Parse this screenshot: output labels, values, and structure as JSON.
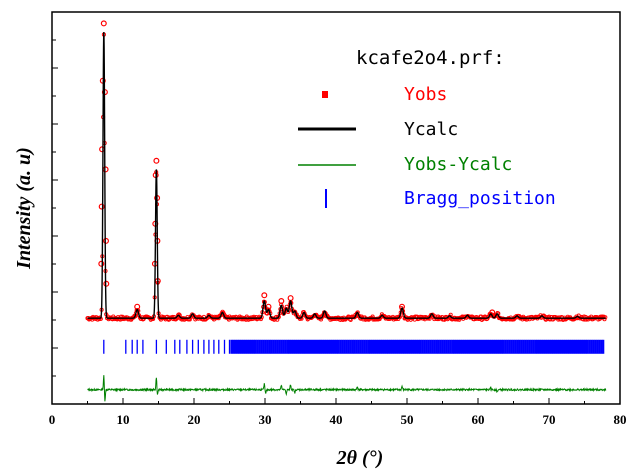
{
  "chart_data": {
    "type": "line",
    "file_label": "kcafe2o4.prf:",
    "xlabel": "2θ (°)",
    "ylabel": "Intensity (a. u)",
    "xlim": [
      0,
      80
    ],
    "xticks": [
      0,
      10,
      20,
      30,
      40,
      50,
      60,
      70,
      80
    ],
    "xrange_data": [
      5,
      78
    ],
    "ylim": [
      -0.27,
      1.1
    ],
    "baseline": 0.03,
    "colors": {
      "yobs": "#ff0000",
      "ycalc": "#000000",
      "diff": "#008000",
      "bragg": "#0000ff"
    },
    "series": [
      {
        "name": "Yobs",
        "style": "circles"
      },
      {
        "name": "Ycalc",
        "style": "line"
      },
      {
        "name": "Yobs-Ycalc",
        "style": "line"
      },
      {
        "name": "Bragg_position",
        "style": "ticks"
      }
    ],
    "peaks": [
      {
        "x": 7.3,
        "h": 1.0
      },
      {
        "x": 14.7,
        "h": 0.52
      },
      {
        "x": 12.0,
        "h": 0.03
      },
      {
        "x": 17.8,
        "h": 0.01
      },
      {
        "x": 19.8,
        "h": 0.015
      },
      {
        "x": 22.1,
        "h": 0.01
      },
      {
        "x": 24.0,
        "h": 0.02
      },
      {
        "x": 29.9,
        "h": 0.06
      },
      {
        "x": 30.5,
        "h": 0.03
      },
      {
        "x": 32.3,
        "h": 0.045
      },
      {
        "x": 33.0,
        "h": 0.035
      },
      {
        "x": 33.6,
        "h": 0.06
      },
      {
        "x": 34.2,
        "h": 0.025
      },
      {
        "x": 35.5,
        "h": 0.02
      },
      {
        "x": 37.0,
        "h": 0.015
      },
      {
        "x": 38.4,
        "h": 0.025
      },
      {
        "x": 43.0,
        "h": 0.02
      },
      {
        "x": 46.5,
        "h": 0.01
      },
      {
        "x": 49.3,
        "h": 0.035
      },
      {
        "x": 53.5,
        "h": 0.015
      },
      {
        "x": 56.0,
        "h": 0.008
      },
      {
        "x": 58.5,
        "h": 0.01
      },
      {
        "x": 61.8,
        "h": 0.015
      },
      {
        "x": 62.7,
        "h": 0.015
      },
      {
        "x": 65.5,
        "h": 0.008
      },
      {
        "x": 69.0,
        "h": 0.008
      },
      {
        "x": 74.0,
        "h": 0.006
      }
    ],
    "obs_overshoot": [
      {
        "x": 7.3,
        "y": 1.06
      },
      {
        "x": 7.15,
        "y": 0.86
      },
      {
        "x": 7.45,
        "y": 0.82
      },
      {
        "x": 7.05,
        "y": 0.62
      },
      {
        "x": 7.55,
        "y": 0.55
      },
      {
        "x": 7.0,
        "y": 0.42
      },
      {
        "x": 7.6,
        "y": 0.3
      },
      {
        "x": 6.95,
        "y": 0.22
      },
      {
        "x": 7.65,
        "y": 0.15
      },
      {
        "x": 14.7,
        "y": 0.58
      },
      {
        "x": 14.6,
        "y": 0.53
      },
      {
        "x": 14.8,
        "y": 0.45
      },
      {
        "x": 14.55,
        "y": 0.36
      },
      {
        "x": 14.85,
        "y": 0.3
      },
      {
        "x": 14.5,
        "y": 0.22
      },
      {
        "x": 14.9,
        "y": 0.16
      },
      {
        "x": 12.0,
        "y": 0.07
      },
      {
        "x": 29.9,
        "y": 0.11
      },
      {
        "x": 33.6,
        "y": 0.1
      },
      {
        "x": 32.3,
        "y": 0.09
      },
      {
        "x": 49.3,
        "y": 0.07
      },
      {
        "x": 30.5,
        "y": 0.07
      },
      {
        "x": 62.0,
        "y": 0.05
      }
    ],
    "bragg_y": -0.07,
    "diff_y": -0.22,
    "diff_spikes": [
      {
        "x": 7.3,
        "d": 0.05
      },
      {
        "x": 7.45,
        "d": -0.04
      },
      {
        "x": 14.7,
        "d": 0.045
      },
      {
        "x": 14.85,
        "d": -0.02
      },
      {
        "x": 29.9,
        "d": 0.02
      },
      {
        "x": 30.1,
        "d": -0.015
      },
      {
        "x": 32.3,
        "d": 0.015
      },
      {
        "x": 33.0,
        "d": -0.015
      },
      {
        "x": 33.6,
        "d": 0.018
      },
      {
        "x": 34.2,
        "d": -0.012
      },
      {
        "x": 43.0,
        "d": 0.012
      },
      {
        "x": 49.3,
        "d": 0.012
      },
      {
        "x": 61.8,
        "d": 0.008
      },
      {
        "x": 62.7,
        "d": -0.008
      }
    ]
  }
}
